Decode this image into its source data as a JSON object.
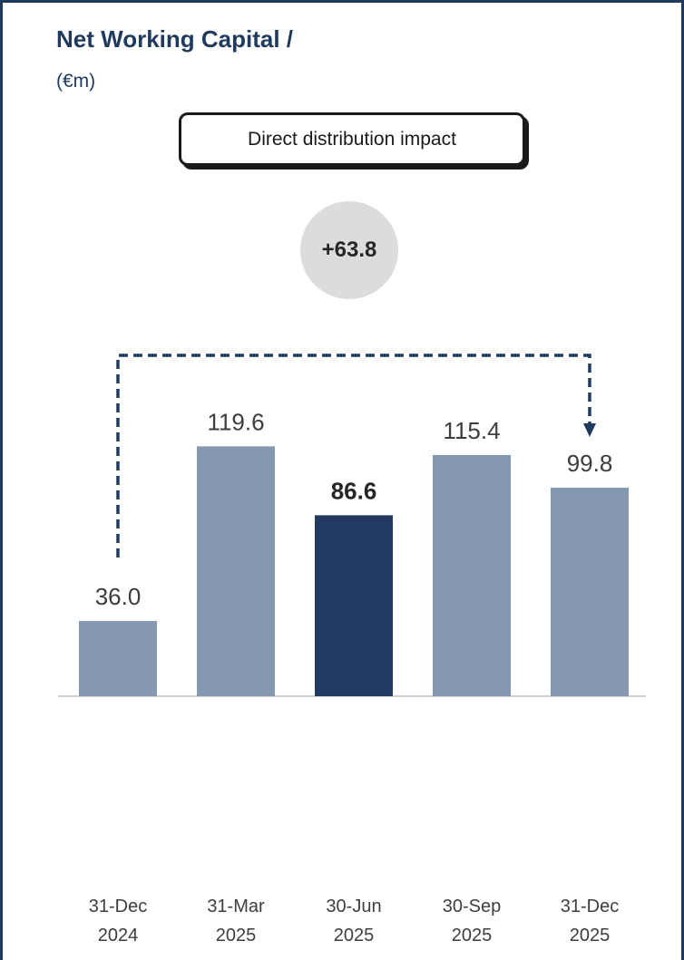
{
  "chart_data": {
    "type": "bar",
    "title": "Net Working Capital /",
    "unit": "(€m)",
    "categories": [
      [
        "31-Dec",
        "2024"
      ],
      [
        "31-Mar",
        "2025"
      ],
      [
        "30-Jun",
        "2025"
      ],
      [
        "30-Sep",
        "2025"
      ],
      [
        "31-Dec",
        "2025"
      ]
    ],
    "values": [
      36.0,
      119.6,
      86.6,
      115.4,
      99.8
    ],
    "value_labels": [
      "36.0",
      "119.6",
      "86.6",
      "115.4",
      "99.8"
    ],
    "highlight_index": 2,
    "ylim": [
      0,
      120
    ],
    "grid": false,
    "colors": {
      "bar": "#8499b1",
      "highlight": "#223a62",
      "arrow": "#1f3a5c",
      "axis": "#bfbfbf"
    },
    "annotation": {
      "callout": "Direct distribution impact",
      "delta": "+63.8",
      "from_index": 0,
      "to_index": 4
    }
  }
}
